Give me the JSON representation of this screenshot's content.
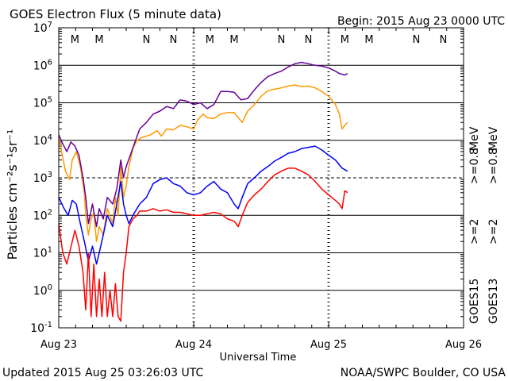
{
  "chart_data": {
    "type": "line",
    "title": "GOES Electron Flux (5 minute data)",
    "begin_label": "Begin: 2015 Aug 23 0000 UTC",
    "xlabel": "Universal Time",
    "ylabel": "Particles cm⁻²s⁻¹sr⁻¹",
    "x_unit": "days since 2015 Aug 23 0000 UTC",
    "xlim": [
      0,
      3
    ],
    "ylim": [
      0.1,
      10000000
    ],
    "yscale": "log",
    "x_ticks": [
      {
        "value": 0,
        "label": "Aug 23"
      },
      {
        "value": 1,
        "label": "Aug 24"
      },
      {
        "value": 2,
        "label": "Aug 25"
      },
      {
        "value": 3,
        "label": "Aug 26"
      }
    ],
    "y_ticks": [
      {
        "exp": -1,
        "base": "10",
        "sup": "-1"
      },
      {
        "exp": 0,
        "base": "10",
        "sup": "0"
      },
      {
        "exp": 1,
        "base": "10",
        "sup": "1"
      },
      {
        "exp": 2,
        "base": "10",
        "sup": "2"
      },
      {
        "exp": 3,
        "base": "10",
        "sup": "3"
      },
      {
        "exp": 4,
        "base": "10",
        "sup": "4"
      },
      {
        "exp": 5,
        "base": "10",
        "sup": "5"
      },
      {
        "exp": 6,
        "base": "10",
        "sup": "6"
      },
      {
        "exp": 7,
        "base": "10",
        "sup": "7"
      }
    ],
    "alert_threshold": 1000,
    "grid": true,
    "legend_position": "right",
    "eclipse_markers": [
      {
        "x": 0.12,
        "label": "M",
        "color": "#dd0000"
      },
      {
        "x": 0.3,
        "label": "M",
        "color": "#0000dd"
      },
      {
        "x": 0.65,
        "label": "N",
        "color": "#dd0000"
      },
      {
        "x": 0.85,
        "label": "N",
        "color": "#0000dd"
      },
      {
        "x": 1.12,
        "label": "M",
        "color": "#dd0000"
      },
      {
        "x": 1.3,
        "label": "M",
        "color": "#0000dd"
      },
      {
        "x": 1.65,
        "label": "N",
        "color": "#dd0000"
      },
      {
        "x": 1.85,
        "label": "N",
        "color": "#0000dd"
      },
      {
        "x": 2.12,
        "label": "M",
        "color": "#dd0000"
      },
      {
        "x": 2.3,
        "label": "M",
        "color": "#0000dd"
      },
      {
        "x": 2.65,
        "label": "N",
        "color": "#dd0000"
      },
      {
        "x": 2.85,
        "label": "N",
        "color": "#0000dd"
      }
    ],
    "series": [
      {
        "name": "GOES13 >=0.8 MeV",
        "color": "#ff9900",
        "points": [
          [
            0,
            12000
          ],
          [
            0.05,
            1500
          ],
          [
            0.08,
            900
          ],
          [
            0.1,
            3000
          ],
          [
            0.13,
            5000
          ],
          [
            0.16,
            2000
          ],
          [
            0.19,
            400
          ],
          [
            0.2,
            100
          ],
          [
            0.22,
            30
          ],
          [
            0.24,
            80
          ],
          [
            0.26,
            120
          ],
          [
            0.28,
            20
          ],
          [
            0.3,
            50
          ],
          [
            0.33,
            30
          ],
          [
            0.36,
            150
          ],
          [
            0.4,
            60
          ],
          [
            0.42,
            300
          ],
          [
            0.44,
            100
          ],
          [
            0.46,
            2000
          ],
          [
            0.48,
            300
          ],
          [
            0.5,
            600
          ],
          [
            0.52,
            2000
          ],
          [
            0.55,
            6000
          ],
          [
            0.58,
            10000
          ],
          [
            0.62,
            12000
          ],
          [
            0.68,
            14000
          ],
          [
            0.73,
            18000
          ],
          [
            0.76,
            13000
          ],
          [
            0.8,
            20000
          ],
          [
            0.85,
            19000
          ],
          [
            0.9,
            25000
          ],
          [
            0.95,
            23000
          ],
          [
            1.0,
            20000
          ],
          [
            1.03,
            35000
          ],
          [
            1.07,
            50000
          ],
          [
            1.1,
            40000
          ],
          [
            1.15,
            38000
          ],
          [
            1.2,
            50000
          ],
          [
            1.25,
            55000
          ],
          [
            1.3,
            55000
          ],
          [
            1.33,
            40000
          ],
          [
            1.36,
            30000
          ],
          [
            1.4,
            60000
          ],
          [
            1.45,
            90000
          ],
          [
            1.5,
            150000
          ],
          [
            1.55,
            210000
          ],
          [
            1.6,
            230000
          ],
          [
            1.65,
            250000
          ],
          [
            1.7,
            280000
          ],
          [
            1.75,
            300000
          ],
          [
            1.8,
            270000
          ],
          [
            1.85,
            280000
          ],
          [
            1.9,
            250000
          ],
          [
            1.95,
            200000
          ],
          [
            2.0,
            150000
          ],
          [
            2.05,
            90000
          ],
          [
            2.08,
            50000
          ],
          [
            2.1,
            20000
          ],
          [
            2.12,
            25000
          ],
          [
            2.14,
            30000
          ]
        ]
      },
      {
        "name": "GOES15 >=0.8 MeV",
        "color": "#660099",
        "points": [
          [
            0,
            14000
          ],
          [
            0.03,
            8000
          ],
          [
            0.06,
            5000
          ],
          [
            0.09,
            9000
          ],
          [
            0.12,
            7000
          ],
          [
            0.15,
            4000
          ],
          [
            0.18,
            1000
          ],
          [
            0.2,
            300
          ],
          [
            0.22,
            60
          ],
          [
            0.25,
            200
          ],
          [
            0.28,
            50
          ],
          [
            0.3,
            150
          ],
          [
            0.33,
            80
          ],
          [
            0.36,
            300
          ],
          [
            0.4,
            200
          ],
          [
            0.43,
            500
          ],
          [
            0.46,
            3000
          ],
          [
            0.48,
            1000
          ],
          [
            0.5,
            2000
          ],
          [
            0.53,
            4000
          ],
          [
            0.56,
            8000
          ],
          [
            0.6,
            20000
          ],
          [
            0.65,
            30000
          ],
          [
            0.7,
            50000
          ],
          [
            0.75,
            60000
          ],
          [
            0.8,
            80000
          ],
          [
            0.85,
            70000
          ],
          [
            0.9,
            120000
          ],
          [
            0.95,
            110000
          ],
          [
            1.0,
            90000
          ],
          [
            1.05,
            100000
          ],
          [
            1.1,
            70000
          ],
          [
            1.15,
            90000
          ],
          [
            1.2,
            200000
          ],
          [
            1.25,
            200000
          ],
          [
            1.3,
            190000
          ],
          [
            1.35,
            120000
          ],
          [
            1.4,
            130000
          ],
          [
            1.45,
            220000
          ],
          [
            1.5,
            350000
          ],
          [
            1.55,
            500000
          ],
          [
            1.6,
            600000
          ],
          [
            1.65,
            700000
          ],
          [
            1.7,
            900000
          ],
          [
            1.75,
            1100000
          ],
          [
            1.8,
            1200000
          ],
          [
            1.85,
            1100000
          ],
          [
            1.9,
            1000000
          ],
          [
            1.95,
            950000
          ],
          [
            2.0,
            850000
          ],
          [
            2.05,
            700000
          ],
          [
            2.08,
            600000
          ],
          [
            2.12,
            550000
          ],
          [
            2.14,
            600000
          ]
        ]
      },
      {
        "name": "GOES15 >=2 MeV",
        "color": "#0000ff",
        "points": [
          [
            0,
            300
          ],
          [
            0.04,
            150
          ],
          [
            0.07,
            100
          ],
          [
            0.1,
            250
          ],
          [
            0.13,
            200
          ],
          [
            0.16,
            60
          ],
          [
            0.19,
            20
          ],
          [
            0.22,
            6
          ],
          [
            0.25,
            15
          ],
          [
            0.28,
            5
          ],
          [
            0.3,
            10
          ],
          [
            0.33,
            30
          ],
          [
            0.36,
            100
          ],
          [
            0.4,
            50
          ],
          [
            0.43,
            200
          ],
          [
            0.46,
            800
          ],
          [
            0.48,
            200
          ],
          [
            0.5,
            100
          ],
          [
            0.52,
            60
          ],
          [
            0.55,
            100
          ],
          [
            0.6,
            200
          ],
          [
            0.65,
            300
          ],
          [
            0.7,
            700
          ],
          [
            0.75,
            900
          ],
          [
            0.8,
            1000
          ],
          [
            0.85,
            700
          ],
          [
            0.9,
            600
          ],
          [
            0.95,
            400
          ],
          [
            1.0,
            350
          ],
          [
            1.05,
            400
          ],
          [
            1.1,
            600
          ],
          [
            1.15,
            800
          ],
          [
            1.2,
            500
          ],
          [
            1.25,
            400
          ],
          [
            1.3,
            200
          ],
          [
            1.33,
            150
          ],
          [
            1.36,
            300
          ],
          [
            1.4,
            700
          ],
          [
            1.45,
            1000
          ],
          [
            1.5,
            1500
          ],
          [
            1.55,
            2000
          ],
          [
            1.6,
            2800
          ],
          [
            1.65,
            3500
          ],
          [
            1.7,
            4500
          ],
          [
            1.75,
            5000
          ],
          [
            1.8,
            6000
          ],
          [
            1.85,
            6500
          ],
          [
            1.9,
            7000
          ],
          [
            1.95,
            5500
          ],
          [
            2.0,
            4000
          ],
          [
            2.05,
            3000
          ],
          [
            2.1,
            1800
          ],
          [
            2.14,
            1500
          ]
        ]
      },
      {
        "name": "GOES13 >=2 MeV",
        "color": "#ff0000",
        "points": [
          [
            0,
            60
          ],
          [
            0.03,
            10
          ],
          [
            0.06,
            5
          ],
          [
            0.08,
            10
          ],
          [
            0.1,
            20
          ],
          [
            0.12,
            40
          ],
          [
            0.15,
            15
          ],
          [
            0.18,
            3
          ],
          [
            0.2,
            0.3
          ],
          [
            0.22,
            10
          ],
          [
            0.24,
            0.2
          ],
          [
            0.26,
            5
          ],
          [
            0.28,
            0.2
          ],
          [
            0.3,
            2
          ],
          [
            0.32,
            0.2
          ],
          [
            0.34,
            3
          ],
          [
            0.36,
            0.2
          ],
          [
            0.38,
            1
          ],
          [
            0.4,
            0.2
          ],
          [
            0.42,
            1.5
          ],
          [
            0.44,
            0.2
          ],
          [
            0.46,
            0.15
          ],
          [
            0.48,
            3
          ],
          [
            0.5,
            10
          ],
          [
            0.52,
            50
          ],
          [
            0.55,
            80
          ],
          [
            0.58,
            100
          ],
          [
            0.6,
            130
          ],
          [
            0.65,
            130
          ],
          [
            0.7,
            150
          ],
          [
            0.75,
            130
          ],
          [
            0.8,
            140
          ],
          [
            0.85,
            120
          ],
          [
            0.9,
            120
          ],
          [
            0.95,
            110
          ],
          [
            1.0,
            100
          ],
          [
            1.05,
            100
          ],
          [
            1.1,
            110
          ],
          [
            1.15,
            120
          ],
          [
            1.2,
            110
          ],
          [
            1.25,
            80
          ],
          [
            1.3,
            70
          ],
          [
            1.33,
            50
          ],
          [
            1.36,
            100
          ],
          [
            1.4,
            220
          ],
          [
            1.45,
            350
          ],
          [
            1.5,
            500
          ],
          [
            1.55,
            800
          ],
          [
            1.6,
            1200
          ],
          [
            1.65,
            1500
          ],
          [
            1.7,
            1800
          ],
          [
            1.75,
            1800
          ],
          [
            1.8,
            1500
          ],
          [
            1.85,
            1200
          ],
          [
            1.9,
            800
          ],
          [
            1.95,
            500
          ],
          [
            2.0,
            350
          ],
          [
            2.05,
            250
          ],
          [
            2.08,
            200
          ],
          [
            2.1,
            150
          ],
          [
            2.12,
            450
          ],
          [
            2.14,
            400
          ]
        ]
      }
    ],
    "legend": [
      {
        "label": "GOES13",
        "color": "#000000"
      },
      {
        "label": ">=2",
        "color": "#ff0000"
      },
      {
        "label": ">=0.8",
        "color": "#ff9900"
      },
      {
        "label": "GOES15",
        "color": "#000000"
      },
      {
        "label": ">=2",
        "color": "#0000ff"
      },
      {
        "label": ">=0.8",
        "color": "#660099"
      },
      {
        "label": "MeV",
        "color": "#000000"
      },
      {
        "label": "MeV",
        "color": "#000000"
      }
    ]
  },
  "footer": {
    "updated": "Updated 2015 Aug 25 03:26:03 UTC",
    "credit": "NOAA/SWPC Boulder, CO USA"
  }
}
